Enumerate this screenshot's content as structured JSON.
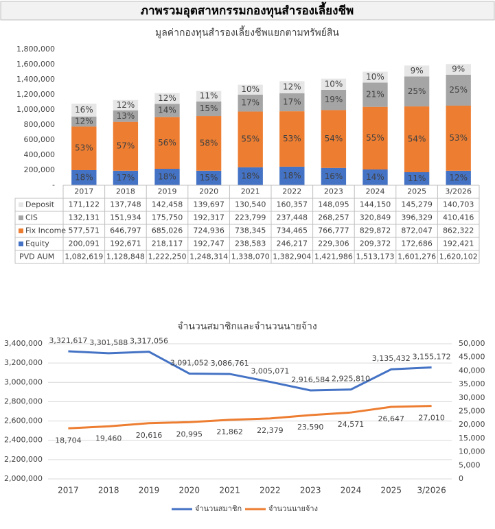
{
  "title": "ภาพรวมอุตสาหกรรมกองทุนสำรองเลี้ยงชีพ",
  "chart_data": [
    {
      "type": "bar",
      "stacked": true,
      "grid": false,
      "title": "มูลค่ากองทุนสำรองเลี้ยงชีพแยกตามทรัพย์สิน",
      "categories": [
        "2017",
        "2018",
        "2019",
        "2020",
        "2021",
        "2022",
        "2023",
        "2024",
        "2025",
        "3/2026"
      ],
      "ylim": [
        0,
        1800000
      ],
      "yticks": [
        {
          "value": 0,
          "label": "-"
        },
        {
          "value": 200000,
          "label": "200,000"
        },
        {
          "value": 400000,
          "label": "400,000"
        },
        {
          "value": 600000,
          "label": "600,000"
        },
        {
          "value": 800000,
          "label": "800,000"
        },
        {
          "value": 1000000,
          "label": "1,000,000"
        },
        {
          "value": 1200000,
          "label": "1,200,000"
        },
        {
          "value": 1400000,
          "label": "1,400,000"
        },
        {
          "value": 1600000,
          "label": "1,600,000"
        },
        {
          "value": 1800000,
          "label": "1,800,000"
        }
      ],
      "series": [
        {
          "name": "Equity",
          "color": "#4472c4",
          "values": [
            200091,
            192671,
            218117,
            192747,
            238583,
            246217,
            229306,
            209372,
            172686,
            192421
          ],
          "value_labels": [
            "200,091",
            "192,671",
            "218,117",
            "192,747",
            "238,583",
            "246,217",
            "229,306",
            "209,372",
            "172,686",
            "192,421"
          ],
          "share_labels": [
            "18%",
            "17%",
            "18%",
            "15%",
            "18%",
            "18%",
            "16%",
            "14%",
            "11%",
            "12%"
          ]
        },
        {
          "name": "Fix Income",
          "color": "#ed7d31",
          "values": [
            577571,
            646797,
            685026,
            724936,
            738345,
            734465,
            766777,
            829872,
            872047,
            862322
          ],
          "value_labels": [
            "577,571",
            "646,797",
            "685,026",
            "724,936",
            "738,345",
            "734,465",
            "766,777",
            "829,872",
            "872,047",
            "862,322"
          ],
          "share_labels": [
            "53%",
            "57%",
            "56%",
            "58%",
            "55%",
            "53%",
            "54%",
            "55%",
            "54%",
            "53%"
          ]
        },
        {
          "name": "CIS",
          "color": "#a5a5a5",
          "values": [
            132131,
            151934,
            175750,
            192317,
            223799,
            237448,
            268257,
            320849,
            396329,
            410416
          ],
          "value_labels": [
            "132,131",
            "151,934",
            "175,750",
            "192,317",
            "223,799",
            "237,448",
            "268,257",
            "320,849",
            "396,329",
            "410,416"
          ],
          "share_labels": [
            "12%",
            "13%",
            "14%",
            "15%",
            "17%",
            "17%",
            "19%",
            "21%",
            "25%",
            "25%"
          ]
        },
        {
          "name": "Deposit",
          "color": "#e7e6e6",
          "values": [
            171122,
            137748,
            142458,
            139697,
            130540,
            160357,
            148095,
            144150,
            145279,
            140703
          ],
          "value_labels": [
            "171,122",
            "137,748",
            "142,458",
            "139,697",
            "130,540",
            "160,357",
            "148,095",
            "144,150",
            "145,279",
            "140,703"
          ],
          "share_labels": [
            "16%",
            "12%",
            "12%",
            "11%",
            "10%",
            "12%",
            "10%",
            "10%",
            "9%",
            "9%"
          ]
        }
      ],
      "total": {
        "name": "PVD AUM",
        "values": [
          1082619,
          1128848,
          1222250,
          1248314,
          1338070,
          1382904,
          1421986,
          1513173,
          1601276,
          1620102
        ],
        "value_labels": [
          "1,082,619",
          "1,128,848",
          "1,222,250",
          "1,248,314",
          "1,338,070",
          "1,382,904",
          "1,421,986",
          "1,513,173",
          "1,601,276",
          "1,620,102"
        ]
      }
    },
    {
      "type": "line",
      "grid": true,
      "legend": "bottom",
      "title": "จำนวนสมาชิกและจำนวนนายจ้าง",
      "categories": [
        "2017",
        "2018",
        "2019",
        "2020",
        "2021",
        "2022",
        "2023",
        "2024",
        "2025",
        "3/2026"
      ],
      "ylim": [
        2000000,
        3400000
      ],
      "yticks": [
        {
          "value": 2000000,
          "label": "2,000,000"
        },
        {
          "value": 2200000,
          "label": "2,200,000"
        },
        {
          "value": 2400000,
          "label": "2,400,000"
        },
        {
          "value": 2600000,
          "label": "2,600,000"
        },
        {
          "value": 2800000,
          "label": "2,800,000"
        },
        {
          "value": 3000000,
          "label": "3,000,000"
        },
        {
          "value": 3200000,
          "label": "3,200,000"
        },
        {
          "value": 3400000,
          "label": "3,400,000"
        }
      ],
      "y2lim": [
        0,
        50000
      ],
      "y2ticks": [
        0,
        {
          "value": 5000,
          "label": "5,000"
        },
        {
          "value": 10000,
          "label": "10,000"
        },
        {
          "value": 15000,
          "label": "15,000"
        },
        {
          "value": 20000,
          "label": "20,000"
        },
        {
          "value": 25000,
          "label": "25,000"
        },
        {
          "value": 30000,
          "label": "30,000"
        },
        {
          "value": 35000,
          "label": "35,000"
        },
        {
          "value": 40000,
          "label": "40,000"
        },
        {
          "value": 45000,
          "label": "45,000"
        },
        {
          "value": 50000,
          "label": "50,000"
        }
      ],
      "series": [
        {
          "name": "จำนวนสมาชิก",
          "color": "#4472c4",
          "values": [
            3321617,
            3301588,
            3317056,
            3091052,
            3086761,
            3005071,
            2916584,
            2925810,
            3135432,
            3155172
          ],
          "value_labels": [
            "3,321,617",
            "3,301,588",
            "3,317,056",
            "3,091,052",
            "3,086,761",
            "3,005,071",
            "2,916,584",
            "2,925,810",
            "3,135,432",
            "3,155,172"
          ]
        },
        {
          "name": "จำนวนนายจ้าง",
          "color": "#ed7d31",
          "axis": "y2",
          "values": [
            18704,
            19460,
            20616,
            20995,
            21862,
            22379,
            23590,
            24571,
            26647,
            27010
          ],
          "value_labels": [
            "18,704",
            "19,460",
            "20,616",
            "20,995",
            "21,862",
            "22,379",
            "23,590",
            "24,571",
            "26,647",
            "27,010"
          ]
        }
      ]
    }
  ]
}
